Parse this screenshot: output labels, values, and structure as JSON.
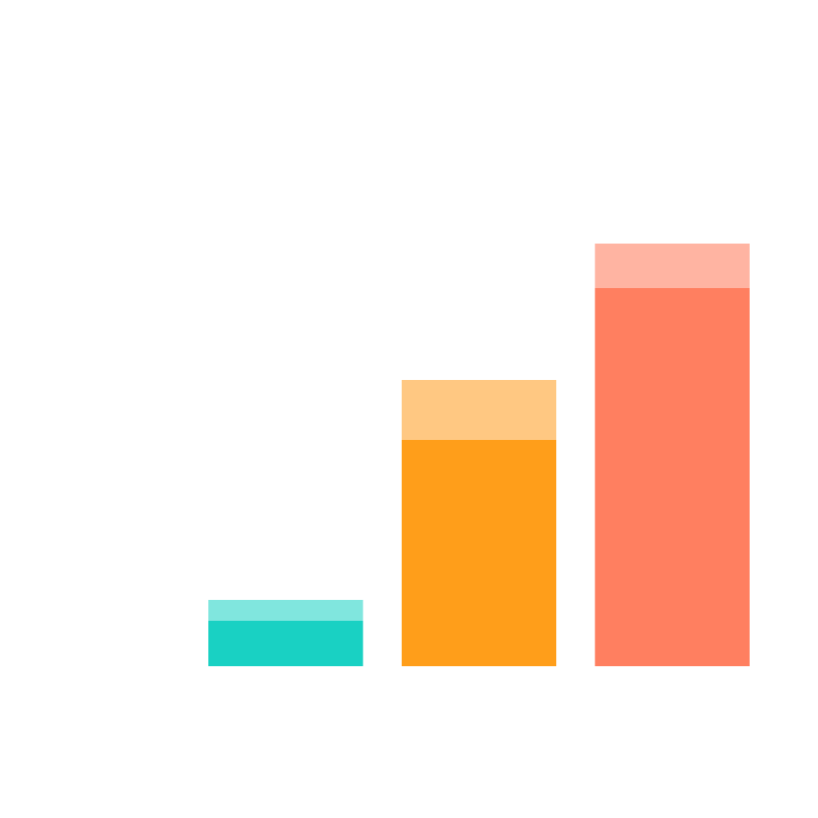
{
  "chart_data": {
    "type": "stacked-bar",
    "categories": [
      null,
      null,
      null
    ],
    "series": [
      {
        "colors": [
          "#19d1c3",
          "#ff9e1a",
          "#ff7f60"
        ],
        "values": [
          50,
          249,
          416
        ]
      },
      {
        "colors": [
          "#80e6de",
          "#ffc882",
          "#ffb4a2"
        ],
        "values": [
          23,
          66,
          49
        ]
      }
    ],
    "ylim": [
      0,
      733
    ]
  }
}
